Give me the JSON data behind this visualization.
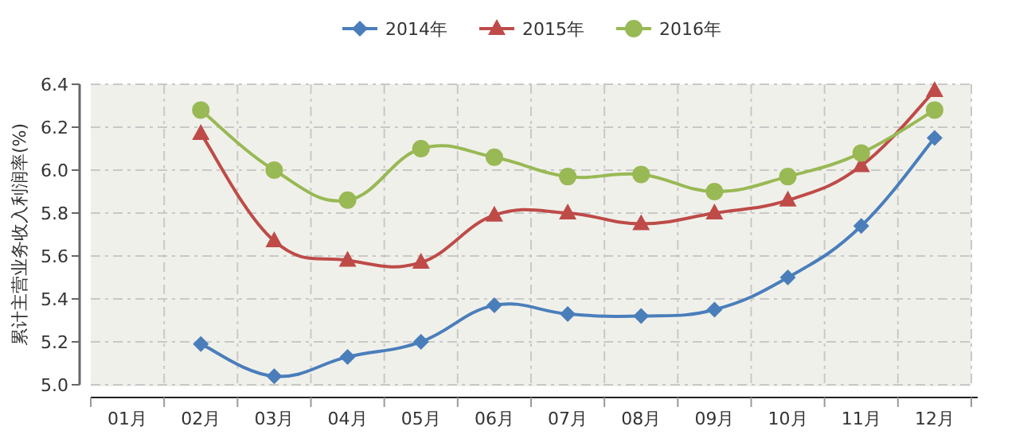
{
  "chart_data": {
    "type": "line",
    "ylabel": "累计主营业务收入利润率(%)",
    "categories": [
      "01月",
      "02月",
      "03月",
      "04月",
      "05月",
      "06月",
      "07月",
      "08月",
      "09月",
      "10月",
      "11月",
      "12月"
    ],
    "ylim": [
      5.0,
      6.4
    ],
    "yticks": [
      {
        "value": 5.0,
        "label": "5.0"
      },
      5.2,
      5.4,
      5.6,
      5.8,
      {
        "value": 6.0,
        "label": "6.0"
      },
      6.2,
      6.4
    ],
    "grid": true,
    "legend": "top",
    "series": [
      {
        "name": "2014年",
        "color": "#4a7ebb",
        "marker": "diamond",
        "values": [
          null,
          5.19,
          5.04,
          5.13,
          5.2,
          5.37,
          5.33,
          5.32,
          5.35,
          5.5,
          5.74,
          6.15
        ]
      },
      {
        "name": "2015年",
        "color": "#be4b48",
        "marker": "triangle",
        "values": [
          null,
          6.17,
          5.67,
          5.58,
          5.57,
          5.79,
          5.8,
          5.75,
          5.8,
          5.86,
          6.02,
          6.37
        ]
      },
      {
        "name": "2016年",
        "color": "#98b954",
        "marker": "circle",
        "values": [
          null,
          6.28,
          6.0,
          5.86,
          6.1,
          6.06,
          5.97,
          5.98,
          5.9,
          5.97,
          6.08,
          6.28
        ]
      }
    ]
  }
}
